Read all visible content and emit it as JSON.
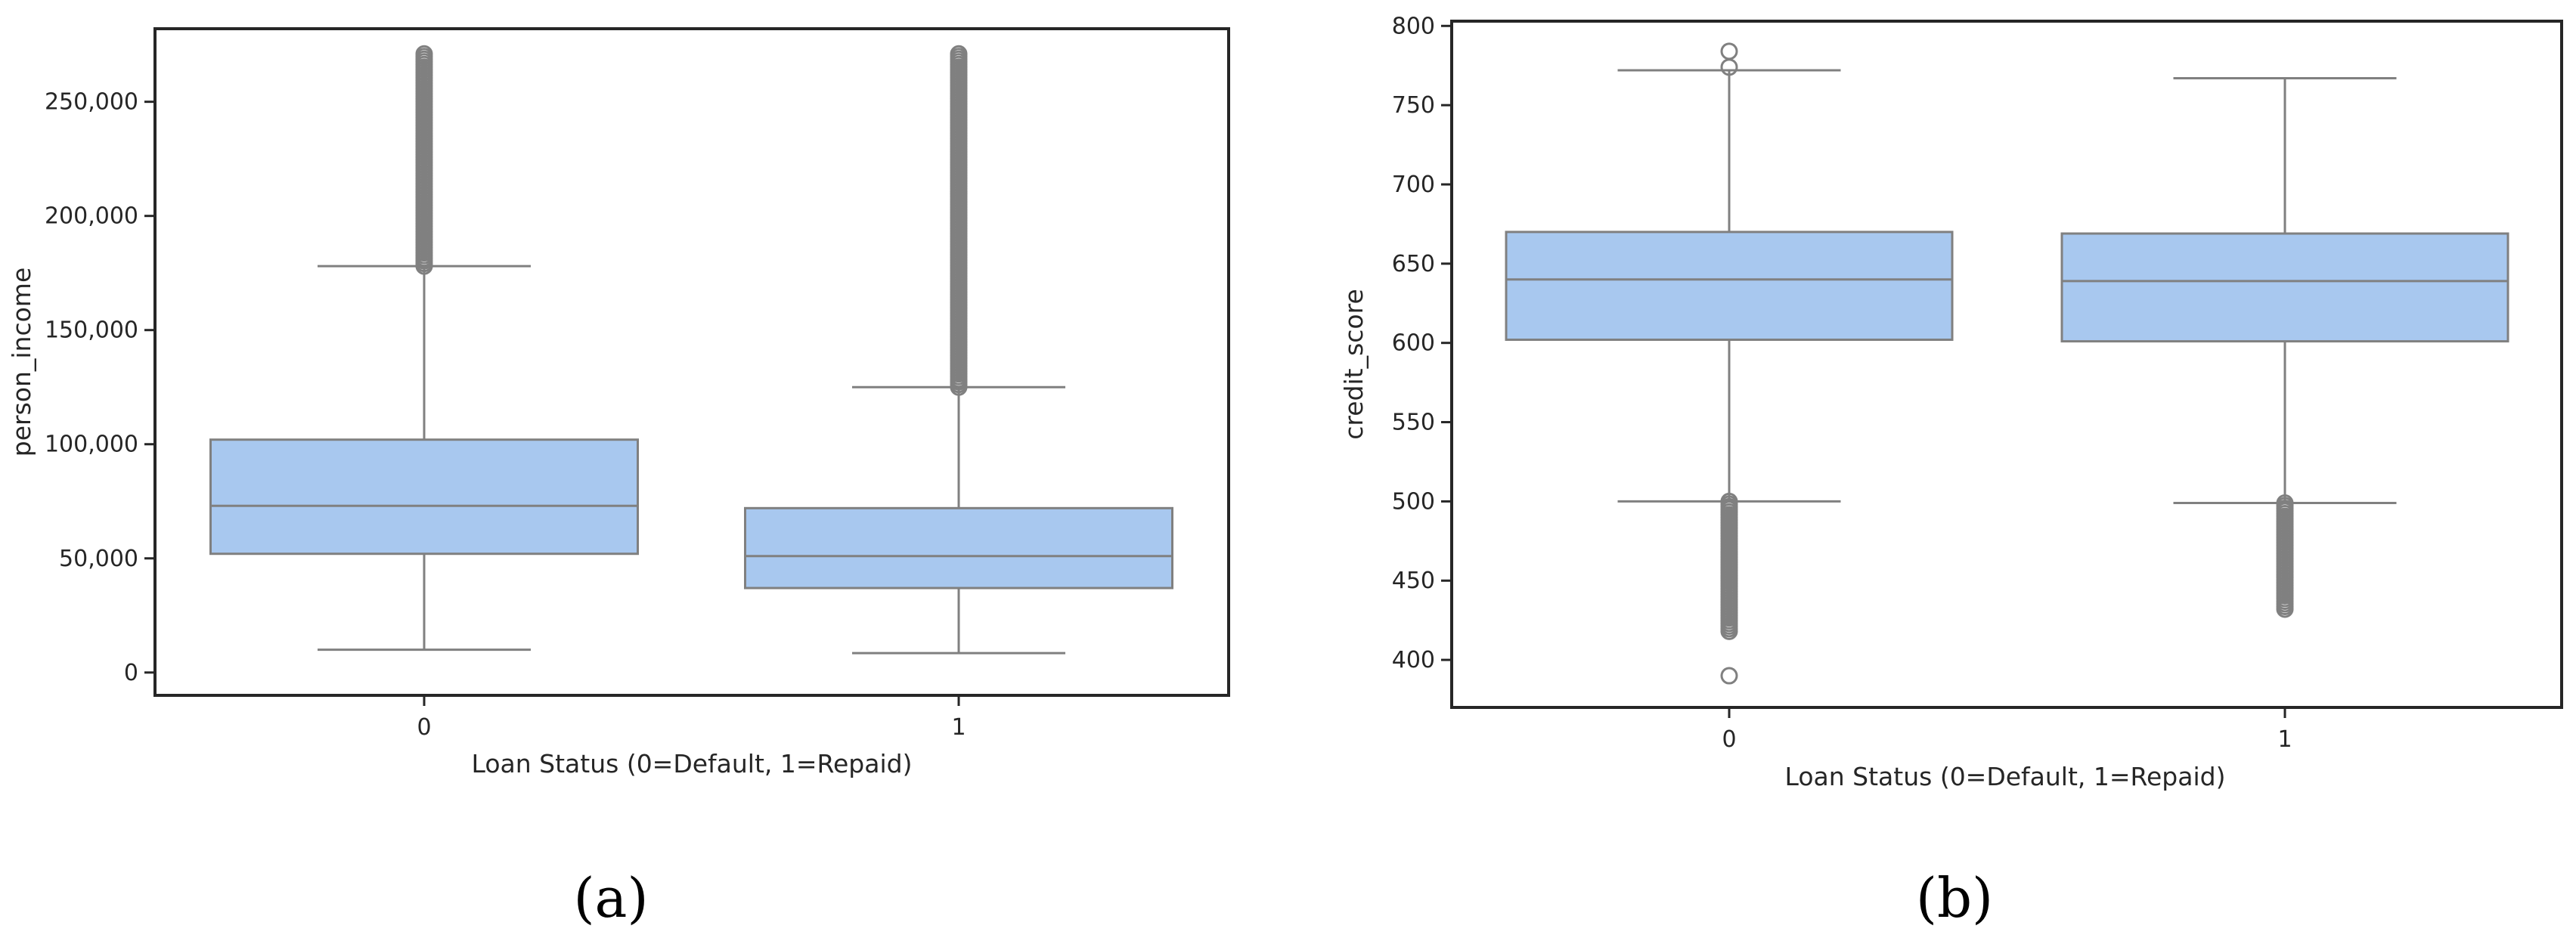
{
  "chart_data": [
    {
      "type": "box",
      "panel_label": "(a)",
      "xlabel": "Loan Status (0=Default, 1=Repaid)",
      "ylabel": "person_income",
      "categories": [
        "0",
        "1"
      ],
      "ylim": [
        -10000,
        282000
      ],
      "yticks": [
        0,
        50000,
        100000,
        150000,
        200000,
        250000
      ],
      "ytick_labels": [
        "0",
        "50,000",
        "100,000",
        "150,000",
        "200,000",
        "250,000"
      ],
      "grid": false,
      "box_color": "#a8c8ef",
      "line_color": "#808080",
      "boxes": [
        {
          "category": "0",
          "whisker_low": 10000,
          "q1": 52000,
          "median": 73000,
          "q3": 102000,
          "whisker_high": 178000,
          "outlier_range": [
            178000,
            271000
          ]
        },
        {
          "category": "1",
          "whisker_low": 8500,
          "q1": 37000,
          "median": 51000,
          "q3": 72000,
          "whisker_high": 125000,
          "outlier_range": [
            125000,
            271000
          ]
        }
      ]
    },
    {
      "type": "box",
      "panel_label": "(b)",
      "xlabel": "Loan Status (0=Default, 1=Repaid)",
      "ylabel": "credit_score",
      "categories": [
        "0",
        "1"
      ],
      "ylim": [
        370,
        803
      ],
      "yticks": [
        400,
        450,
        500,
        550,
        600,
        650,
        700,
        750,
        800
      ],
      "ytick_labels": [
        "400",
        "450",
        "500",
        "550",
        "600",
        "650",
        "700",
        "750",
        "800"
      ],
      "grid": false,
      "box_color": "#a8c8ef",
      "line_color": "#808080",
      "boxes": [
        {
          "category": "0",
          "whisker_low": 500,
          "q1": 602,
          "median": 640,
          "q3": 670,
          "whisker_high": 772,
          "outliers_high": [
            774,
            784
          ],
          "outlier_low_range": [
            418,
            500
          ],
          "outliers_low_extra": [
            390
          ]
        },
        {
          "category": "1",
          "whisker_low": 499,
          "q1": 601,
          "median": 639,
          "q3": 669,
          "whisker_high": 767,
          "outliers_high": [],
          "outlier_low_range": [
            432,
            499
          ],
          "outliers_low_extra": []
        }
      ]
    }
  ]
}
